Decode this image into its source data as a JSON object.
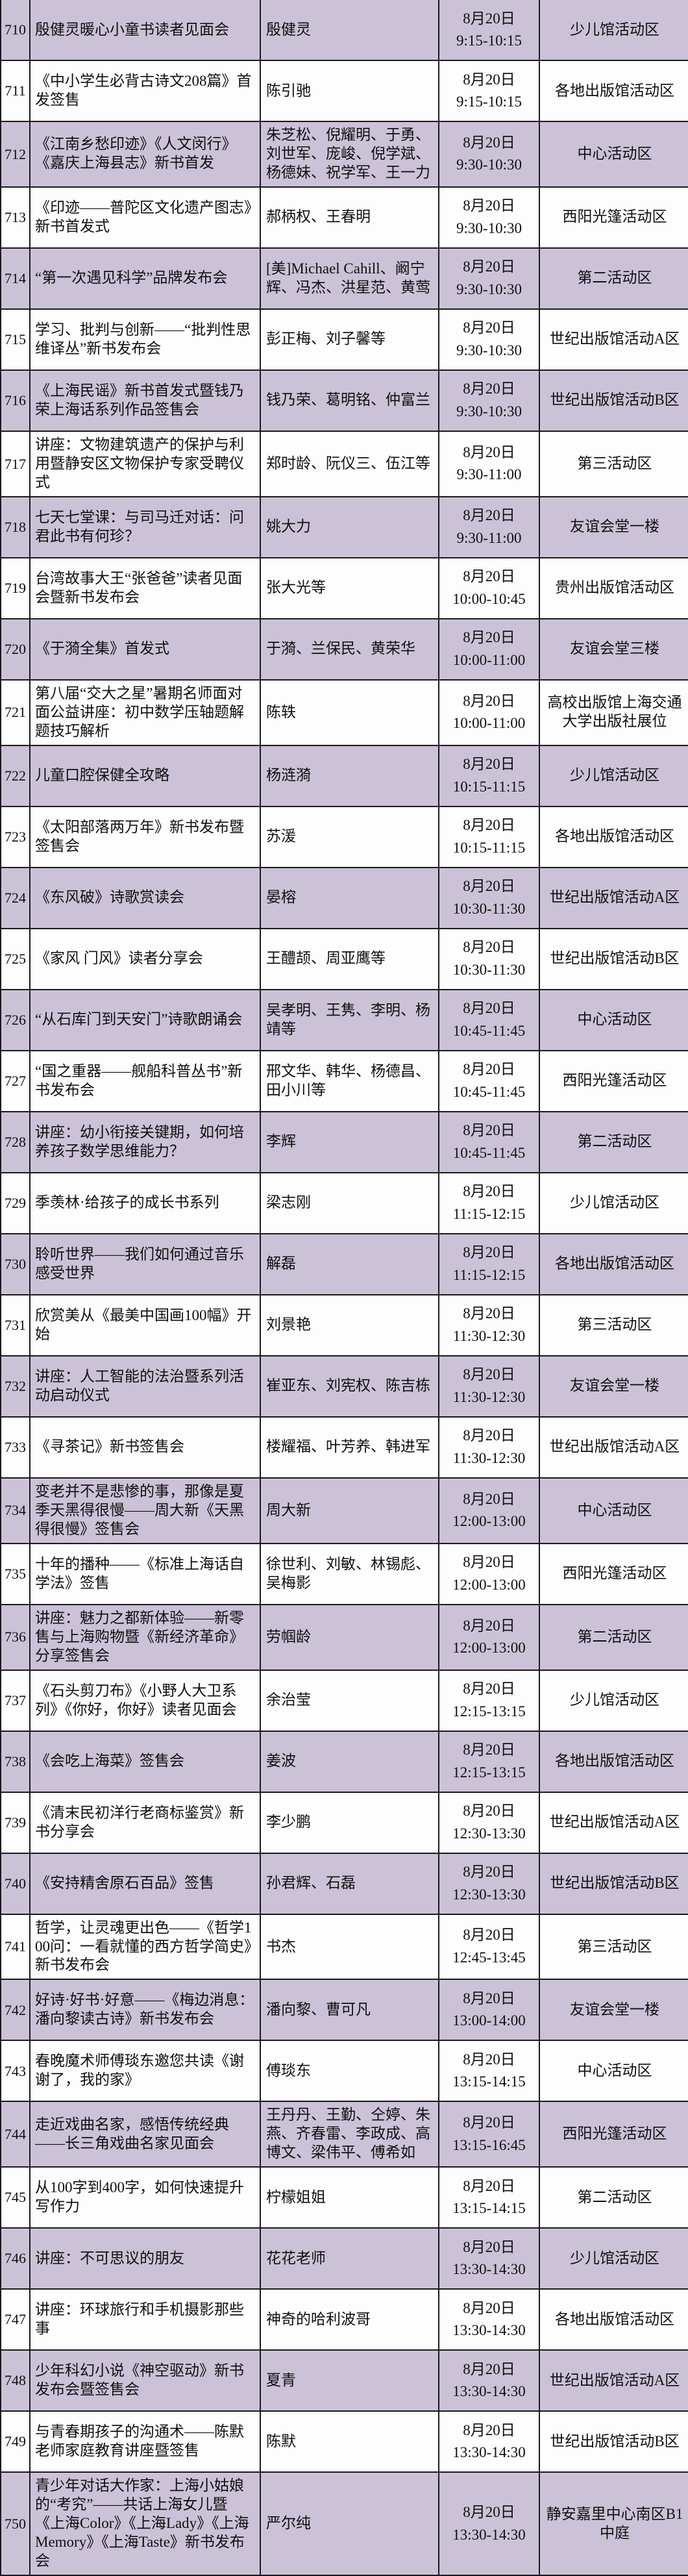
{
  "table": {
    "rows": [
      {
        "no": "710",
        "title": "殷健灵暖心小童书读者见面会",
        "speakers": "殷健灵",
        "date": "8月20日",
        "time": "9:15-10:15",
        "location": "少儿馆活动区"
      },
      {
        "no": "711",
        "title": "《中小学生必背古诗文208篇》首发签售",
        "speakers": "陈引驰",
        "date": "8月20日",
        "time": "9:15-10:15",
        "location": "各地出版馆活动区"
      },
      {
        "no": "712",
        "title": "《江南乡愁印迹》《人文闵行》《嘉庆上海县志》新书首发",
        "speakers": "朱芝松、倪耀明、于勇、刘世军、庞峻、倪学斌、杨德妹、祝学军、王一力",
        "date": "8月20日",
        "time": "9:30-10:30",
        "location": "中心活动区"
      },
      {
        "no": "713",
        "title": "《印迹——普陀区文化遗产图志》新书首发式",
        "speakers": "郝柄权、王春明",
        "date": "8月20日",
        "time": "9:30-10:30",
        "location": "西阳光篷活动区"
      },
      {
        "no": "714",
        "title": "“第一次遇见科学”品牌发布会",
        "speakers": "[美]Michael Cahill、阚宁辉、冯杰、洪星范、黄莺",
        "date": "8月20日",
        "time": "9:30-10:30",
        "location": "第二活动区"
      },
      {
        "no": "715",
        "title": "学习、批判与创新——“批判性思维译丛”新书发布会",
        "speakers": "彭正梅、刘子馨等",
        "date": "8月20日",
        "time": "9:30-10:30",
        "location": "世纪出版馆活动A区"
      },
      {
        "no": "716",
        "title": "《上海民谣》新书首发式暨钱乃荣上海话系列作品签售会",
        "speakers": "钱乃荣、葛明铭、仲富兰",
        "date": "8月20日",
        "time": "9:30-10:30",
        "location": "世纪出版馆活动B区"
      },
      {
        "no": "717",
        "title": "讲座：文物建筑遗产的保护与利用暨静安区文物保护专家受聘仪式",
        "speakers": "郑时龄、阮仪三、伍江等",
        "date": "8月20日",
        "time": "9:30-11:00",
        "location": "第三活动区"
      },
      {
        "no": "718",
        "title": "七天七堂课：与司马迁对话：问君此书有何珍？",
        "speakers": "姚大力",
        "date": "8月20日",
        "time": "9:30-11:00",
        "location": "友谊会堂一楼"
      },
      {
        "no": "719",
        "title": "台湾故事大王“张爸爸”读者见面会暨新书发布会",
        "speakers": "张大光等",
        "date": "8月20日",
        "time": "10:00-10:45",
        "location": "贵州出版馆活动区"
      },
      {
        "no": "720",
        "title": "《于漪全集》首发式",
        "speakers": "于漪、兰保民、黄荣华",
        "date": "8月20日",
        "time": "10:00-11:00",
        "location": "友谊会堂三楼"
      },
      {
        "no": "721",
        "title": "第八届“交大之星”暑期名师面对面公益讲座：初中数学压轴题解题技巧解析",
        "speakers": "陈轶",
        "date": "8月20日",
        "time": "10:00-11:00",
        "location": "高校出版馆上海交通大学出版社展位"
      },
      {
        "no": "722",
        "title": "儿童口腔保健全攻略",
        "speakers": "杨涟漪",
        "date": "8月20日",
        "time": "10:15-11:15",
        "location": "少儿馆活动区"
      },
      {
        "no": "723",
        "title": "《太阳部落两万年》新书发布暨签售会",
        "speakers": "苏湲",
        "date": "8月20日",
        "time": "10:15-11:15",
        "location": "各地出版馆活动区"
      },
      {
        "no": "724",
        "title": "《东风破》诗歌赏读会",
        "speakers": "晏榕",
        "date": "8月20日",
        "time": "10:30-11:30",
        "location": "世纪出版馆活动A区"
      },
      {
        "no": "725",
        "title": "《家风 门风》读者分享会",
        "speakers": "王醴颉、周亚鹰等",
        "date": "8月20日",
        "time": "10:30-11:30",
        "location": "世纪出版馆活动B区"
      },
      {
        "no": "726",
        "title": "“从石库门到天安门”诗歌朗诵会",
        "speakers": "吴孝明、王隽、李明、杨靖等",
        "date": "8月20日",
        "time": "10:45-11:45",
        "location": "中心活动区"
      },
      {
        "no": "727",
        "title": "“国之重器——舰船科普丛书”新书发布会",
        "speakers": "邢文华、韩华、杨德昌、田小川等",
        "date": "8月20日",
        "time": "10:45-11:45",
        "location": "西阳光篷活动区"
      },
      {
        "no": "728",
        "title": "讲座：幼小衔接关键期，如何培养孩子数学思维能力？",
        "speakers": "李辉",
        "date": "8月20日",
        "time": "10:45-11:45",
        "location": "第二活动区"
      },
      {
        "no": "729",
        "title": "季羡林·给孩子的成长书系列",
        "speakers": "梁志刚",
        "date": "8月20日",
        "time": "11:15-12:15",
        "location": "少儿馆活动区"
      },
      {
        "no": "730",
        "title": "聆听世界——我们如何通过音乐感受世界",
        "speakers": "解磊",
        "date": "8月20日",
        "time": "11:15-12:15",
        "location": "各地出版馆活动区"
      },
      {
        "no": "731",
        "title": "欣赏美从《最美中国画100幅》开始",
        "speakers": "刘景艳",
        "date": "8月20日",
        "time": "11:30-12:30",
        "location": "第三活动区"
      },
      {
        "no": "732",
        "title": "讲座：人工智能的法治暨系列活动启动仪式",
        "speakers": "崔亚东、刘宪权、陈吉栋",
        "date": "8月20日",
        "time": "11:30-12:30",
        "location": "友谊会堂一楼"
      },
      {
        "no": "733",
        "title": "《寻茶记》新书签售会",
        "speakers": "楼耀福、叶芳养、韩进军",
        "date": "8月20日",
        "time": "11:30-12:30",
        "location": "世纪出版馆活动A区"
      },
      {
        "no": "734",
        "title": "变老并不是悲惨的事，那像是夏季天黑得很慢——周大新《天黑得很慢》签售会",
        "speakers": "周大新",
        "date": "8月20日",
        "time": "12:00-13:00",
        "location": "中心活动区"
      },
      {
        "no": "735",
        "title": "十年的播种——《标准上海话自学法》签售",
        "speakers": "徐世利、刘敏、林锡彪、吴梅影",
        "date": "8月20日",
        "time": "12:00-13:00",
        "location": "西阳光篷活动区"
      },
      {
        "no": "736",
        "title": "讲座：魅力之都新体验——新零售与上海购物暨《新经济革命》分享签售会",
        "speakers": "劳帼龄",
        "date": "8月20日",
        "time": "12:00-13:00",
        "location": "第二活动区"
      },
      {
        "no": "737",
        "title": "《石头剪刀布》《小野人大卫系列》《你好，你好》读者见面会",
        "speakers": "余治莹",
        "date": "8月20日",
        "time": "12:15-13:15",
        "location": "少儿馆活动区"
      },
      {
        "no": "738",
        "title": "《会吃上海菜》签售会",
        "speakers": "姜波",
        "date": "8月20日",
        "time": "12:15-13:15",
        "location": "各地出版馆活动区"
      },
      {
        "no": "739",
        "title": "《清末民初洋行老商标鉴赏》新书分享会",
        "speakers": "李少鹏",
        "date": "8月20日",
        "time": "12:30-13:30",
        "location": "世纪出版馆活动A区"
      },
      {
        "no": "740",
        "title": "《安持精舍原石百品》签售",
        "speakers": "孙君辉、石磊",
        "date": "8月20日",
        "time": "12:30-13:30",
        "location": "世纪出版馆活动B区"
      },
      {
        "no": "741",
        "title": "哲学，让灵魂更出色——《哲学100问：一看就懂的西方哲学简史》新书发布会",
        "speakers": "书杰",
        "date": "8月20日",
        "time": "12:45-13:45",
        "location": "第三活动区"
      },
      {
        "no": "742",
        "title": "好诗·好书·好意——《梅边消息：潘向黎读古诗》新书发布会",
        "speakers": "潘向黎、曹可凡",
        "date": "8月20日",
        "time": "13:00-14:00",
        "location": "友谊会堂一楼"
      },
      {
        "no": "743",
        "title": "春晚魔术师傅琰东邀您共读《谢谢了，我的家》",
        "speakers": "傅琰东",
        "date": "8月20日",
        "time": "13:15-14:15",
        "location": "中心活动区"
      },
      {
        "no": "744",
        "title": "走近戏曲名家，感悟传统经典——长三角戏曲名家见面会",
        "speakers": "王丹丹、王勤、仝婷、朱燕、齐春雷、李政成、高博文、梁伟平、傅希如",
        "date": "8月20日",
        "time": "13:15-16:45",
        "location": "西阳光篷活动区"
      },
      {
        "no": "745",
        "title": "从100字到400字，如何快速提升写作力",
        "speakers": "柠檬姐姐",
        "date": "8月20日",
        "time": "13:15-14:15",
        "location": "第二活动区"
      },
      {
        "no": "746",
        "title": "讲座：不可思议的朋友",
        "speakers": "花花老师",
        "date": "8月20日",
        "time": "13:30-14:30",
        "location": "少儿馆活动区"
      },
      {
        "no": "747",
        "title": "讲座：环球旅行和手机摄影那些事",
        "speakers": "神奇的哈利波哥",
        "date": "8月20日",
        "time": "13:30-14:30",
        "location": "各地出版馆活动区"
      },
      {
        "no": "748",
        "title": "少年科幻小说《神空驱动》新书发布会暨签售会",
        "speakers": "夏青",
        "date": "8月20日",
        "time": "13:30-14:30",
        "location": "世纪出版馆活动A区"
      },
      {
        "no": "749",
        "title": "与青春期孩子的沟通术——陈默老师家庭教育讲座暨签售",
        "speakers": "陈默",
        "date": "8月20日",
        "time": "13:30-14:30",
        "location": "世纪出版馆活动B区"
      },
      {
        "no": "750",
        "title": "青少年对话大作家：上海小姑娘的“考究”——共话上海女儿暨《上海Color》《上海Lady》《上海Memory》《上海Taste》新书发布会",
        "speakers": "严尔纯",
        "date": "8月20日",
        "time": "13:30-14:30",
        "location": "静安嘉里中心南区B1中庭"
      }
    ]
  },
  "colors": {
    "row_purple": "#cbc2d7",
    "row_white": "#fdfdfd",
    "border": "#1a1a1a",
    "text": "#0f0f0f"
  }
}
